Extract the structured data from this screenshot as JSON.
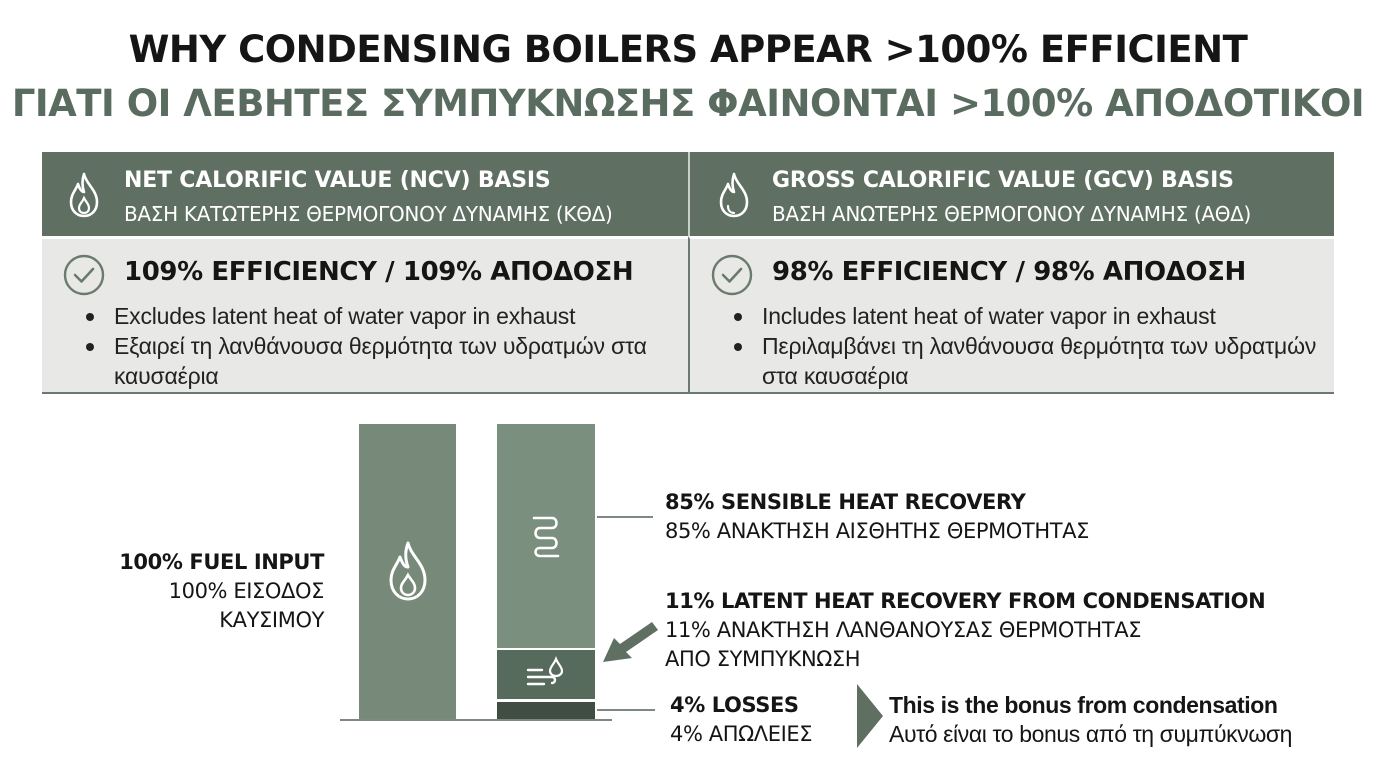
{
  "title": {
    "en": "WHY CONDENSING BOILERS APPEAR >100% EFFICIENT",
    "gr": "ΓΙΑΤΙ ΟΙ ΛΕΒΗΤΕΣ ΣΥΜΠΥΚΝΩΣΗΣ ΦΑΙΝΟΝΤΑΙ >100% ΑΠΟΔΟΤΙΚΟΙ"
  },
  "colors": {
    "header_bg": "#5f6f62",
    "cell_bg": "#e8e9e6",
    "bar_light": "#778a7a",
    "bar_mid": "#576b5c",
    "bar_dark": "#3f4d42",
    "title_gr": "#5a6b5f"
  },
  "table": {
    "ncv": {
      "icon": "flame-icon",
      "title_en": "NET CALORIFIC VALUE (NCV) BASIS",
      "title_gr": "ΒΑΣΗ ΚΑΤΩΤΕΡΗΣ ΘΕΡΜΟΓΟΝΟΥ ΔΥΝΑΜΗΣ (ΚΘΔ)",
      "efficiency": "109% EFFICIENCY / 109% ΑΠΟΔΟΣΗ",
      "bullets": [
        "Excludes latent heat of water vapor in exhaust",
        "Εξαιρεί τη λανθάνουσα θερμότητα των υδρατμών στα καυσαέρια"
      ]
    },
    "gcv": {
      "icon": "flame-icon",
      "title_en": "GROSS CALORIFIC VALUE (GCV) BASIS",
      "title_gr": "ΒΑΣΗ ΑΝΩΤΕΡΗΣ ΘΕΡΜΟΓΟΝΟΥ ΔΥΝΑΜΗΣ (ΑΘΔ)",
      "efficiency": "98% EFFICIENCY / 98% ΑΠΟΔΟΣΗ",
      "bullets": [
        "Includes latent heat of water vapor in exhaust",
        "Περιλαμβάνει τη λανθάνουσα θερμότητα των υδρατμών στα καυσαέρια"
      ]
    }
  },
  "diagram": {
    "input": {
      "value": 100,
      "line1": "100% FUEL INPUT",
      "line2": "100% ΕΙΣΟΔΟΣ",
      "line3": "ΚΑΥΣΙΜΟΥ",
      "icon": "flame-icon"
    },
    "sensible": {
      "value": 85,
      "line1": "85% SENSIBLE HEAT RECOVERY",
      "line2": "85% ΑΝΑΚΤΗΣΗ ΑΙΣΘΗΤΗΣ ΘΕΡΜΟΤΗΤΑΣ",
      "icon": "heat-coil-icon"
    },
    "latent": {
      "value": 11,
      "line1": "11% LATENT HEAT RECOVERY FROM CONDENSATION",
      "line2": "11% ΑΝΑΚΤΗΣΗ ΛΑΝΘΑΝΟΥΣΑΣ ΘΕΡΜΟΤΗΤΑΣ",
      "line3": "ΑΠΟ ΣΥΜΠΥΚΝΩΣΗ",
      "icon": "condensation-drop-icon"
    },
    "losses": {
      "value": 4,
      "line1": "4% LOSSES",
      "line2": "4% ΑΠΩΛΕΙΕΣ"
    },
    "bonus": {
      "line1": "This is the bonus from condensation",
      "line2": "Αυτό είναι το bonus από τη συμπύκνωση",
      "icon": "triangle-arrow-icon"
    }
  }
}
